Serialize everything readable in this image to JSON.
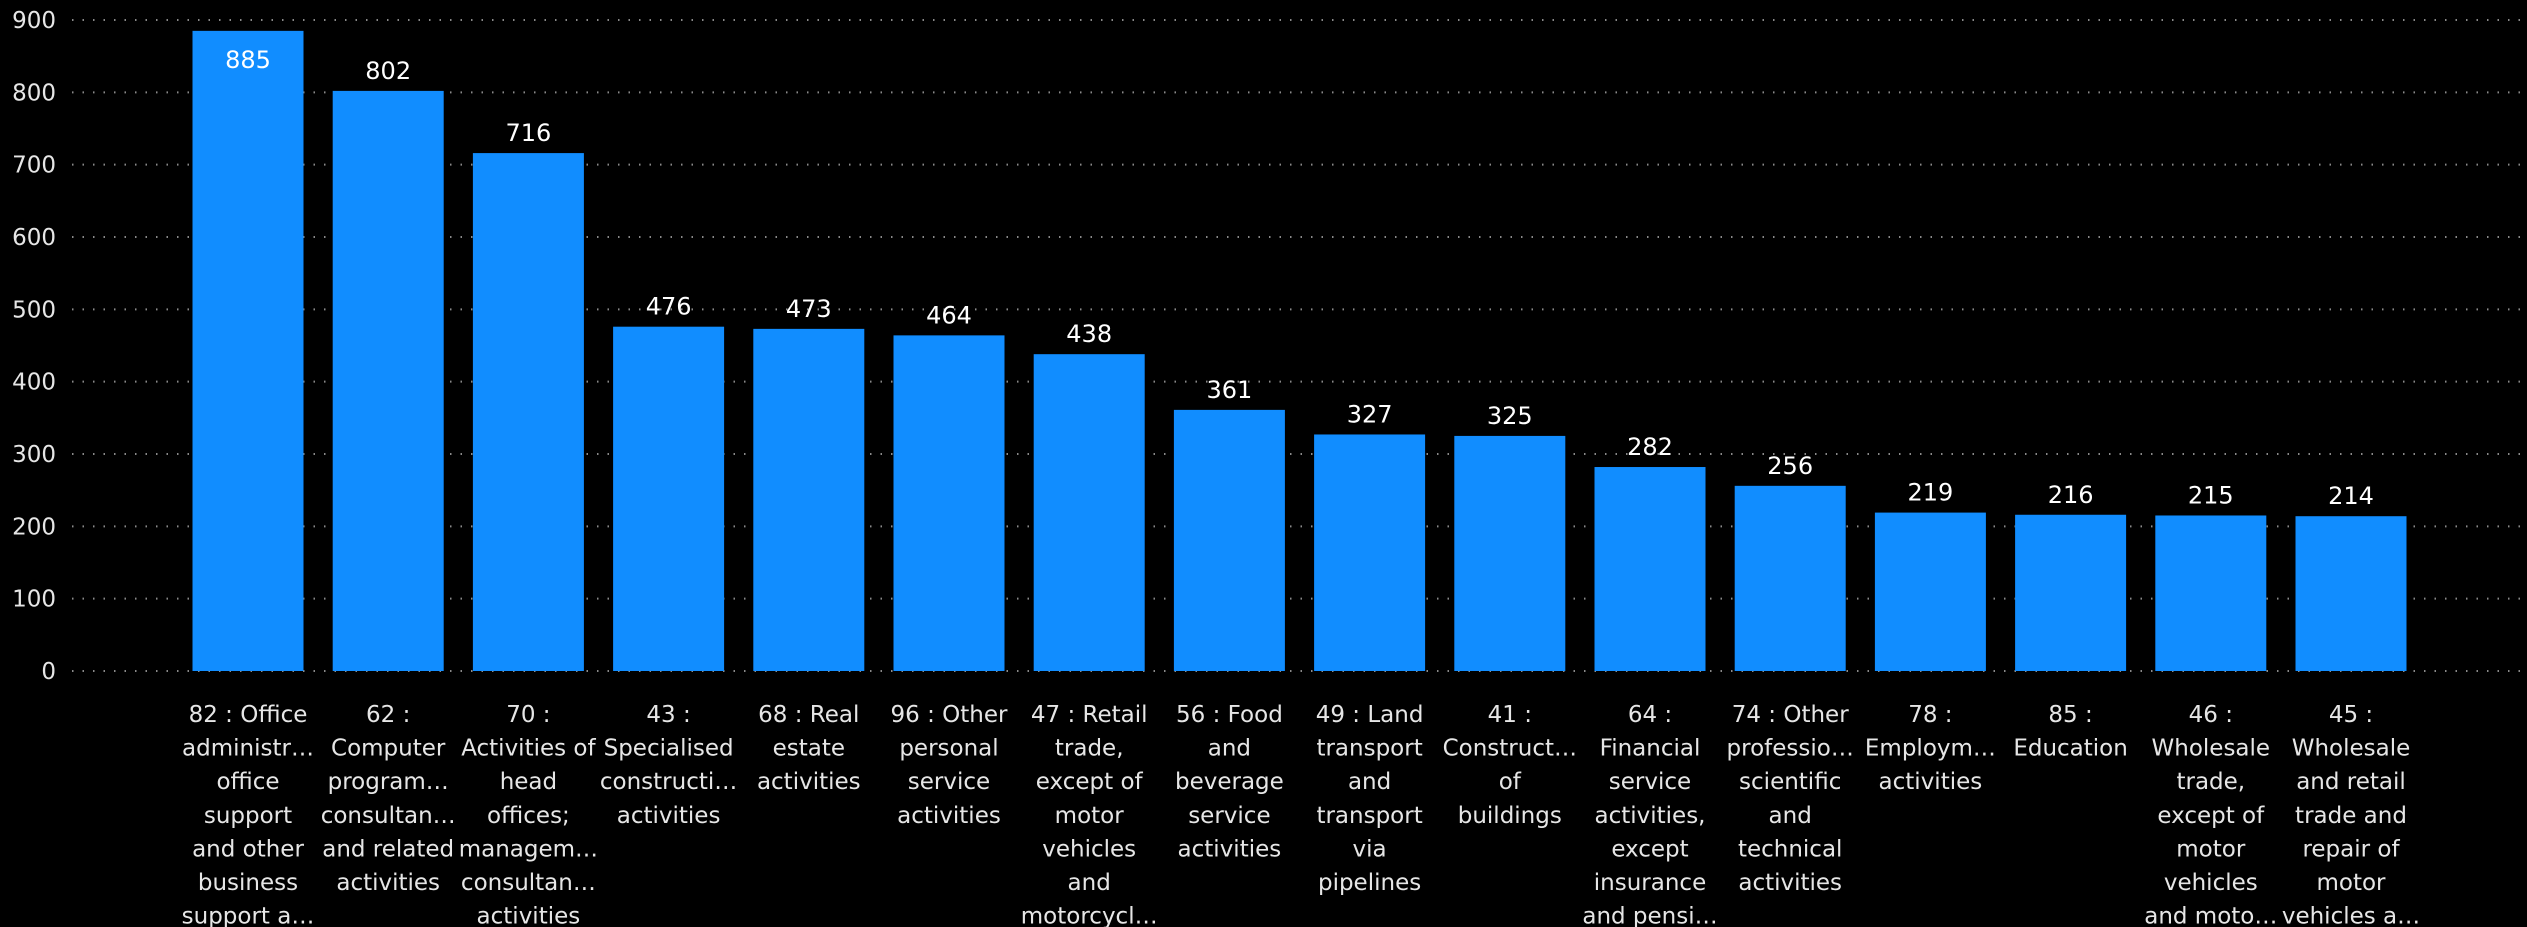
{
  "chart_data": {
    "type": "bar",
    "colors": {
      "bar": "#118DFF",
      "background": "#000000",
      "text": "#e6e6e6",
      "grid": "#8a8a8a"
    },
    "ylim": [
      0,
      900
    ],
    "yticks": [
      "0",
      "100",
      "200",
      "300",
      "400",
      "500",
      "600",
      "700",
      "800",
      "900"
    ],
    "grid": true,
    "categories": [
      [
        "82 : Office",
        "administr…",
        "office",
        "support",
        "and other",
        "business",
        "support a…"
      ],
      [
        "62 :",
        "Computer",
        "program…",
        "consultan…",
        "and related",
        "activities"
      ],
      [
        "70 :",
        "Activities of",
        "head",
        "offices;",
        "managem…",
        "consultan…",
        "activities"
      ],
      [
        "43 :",
        "Specialised",
        "constructi…",
        "activities"
      ],
      [
        "68 : Real",
        "estate",
        "activities"
      ],
      [
        "96 : Other",
        "personal",
        "service",
        "activities"
      ],
      [
        "47 : Retail",
        "trade,",
        "except of",
        "motor",
        "vehicles",
        "and",
        "motorcycl…"
      ],
      [
        "56 : Food",
        "and",
        "beverage",
        "service",
        "activities"
      ],
      [
        "49 : Land",
        "transport",
        "and",
        "transport",
        "via",
        "pipelines"
      ],
      [
        "41 :",
        "Construct…",
        "of",
        "buildings"
      ],
      [
        "64 :",
        "Financial",
        "service",
        "activities,",
        "except",
        "insurance",
        "and pensi…"
      ],
      [
        "74 : Other",
        "professio…",
        "scientific",
        "and",
        "technical",
        "activities"
      ],
      [
        "78 :",
        "Employm…",
        "activities"
      ],
      [
        "85 :",
        "Education"
      ],
      [
        "46 :",
        "Wholesale",
        "trade,",
        "except of",
        "motor",
        "vehicles",
        "and moto…"
      ],
      [
        "45 :",
        "Wholesale",
        "and retail",
        "trade and",
        "repair of",
        "motor",
        "vehicles a…"
      ]
    ],
    "values": [
      885,
      802,
      716,
      476,
      473,
      464,
      438,
      361,
      327,
      325,
      282,
      256,
      219,
      216,
      215,
      214
    ]
  }
}
